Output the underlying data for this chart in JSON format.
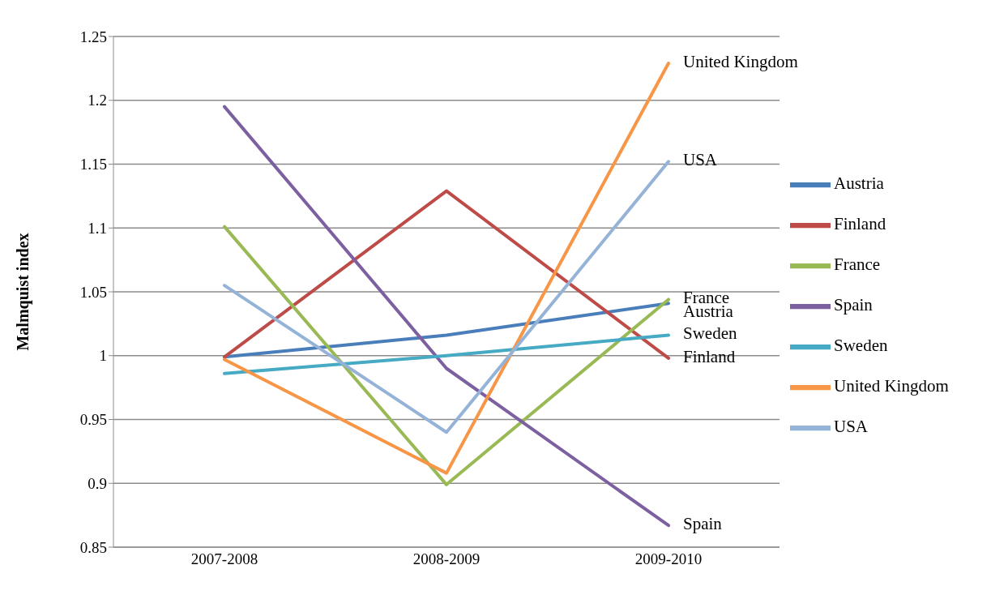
{
  "chart_data": {
    "type": "line",
    "ylabel": "Malmquist index",
    "categories": [
      "2007-2008",
      "2008-2009",
      "2009-2010"
    ],
    "series": [
      {
        "name": "Austria",
        "color": "#4a7ebb",
        "values": [
          0.999,
          1.016,
          1.041
        ]
      },
      {
        "name": "Finland",
        "color": "#be4b48",
        "values": [
          0.999,
          1.129,
          0.998
        ]
      },
      {
        "name": "France",
        "color": "#98b954",
        "values": [
          1.101,
          0.899,
          1.044
        ]
      },
      {
        "name": "Spain",
        "color": "#7d60a0",
        "values": [
          1.195,
          0.99,
          0.867
        ]
      },
      {
        "name": "Sweden",
        "color": "#46aac5",
        "values": [
          0.986,
          1.0,
          1.016
        ]
      },
      {
        "name": "United Kingdom",
        "color": "#f79646",
        "values": [
          0.997,
          0.908,
          1.229
        ]
      },
      {
        "name": "USA",
        "color": "#95b3d7",
        "values": [
          1.055,
          0.94,
          1.152
        ]
      }
    ],
    "annotations": [
      {
        "text": "United Kingdom",
        "x": "2009-2010",
        "y": 1.229
      },
      {
        "text": "USA",
        "x": "2009-2010",
        "y": 1.152
      },
      {
        "text": "France",
        "x": "2009-2010",
        "y": 1.044
      },
      {
        "text": "Austria",
        "x": "2009-2010",
        "y": 1.041
      },
      {
        "text": "Sweden",
        "x": "2009-2010",
        "y": 1.016
      },
      {
        "text": "Finland",
        "x": "2009-2010",
        "y": 0.998
      },
      {
        "text": "Spain",
        "x": "2009-2010",
        "y": 0.867
      }
    ],
    "ylim": [
      0.85,
      1.25
    ],
    "yticks": [
      0.85,
      0.9,
      0.95,
      1,
      1.05,
      1.1,
      1.15,
      1.2,
      1.25
    ],
    "grid": "y",
    "legend": "right",
    "marker": "none",
    "line_style": "solid"
  }
}
